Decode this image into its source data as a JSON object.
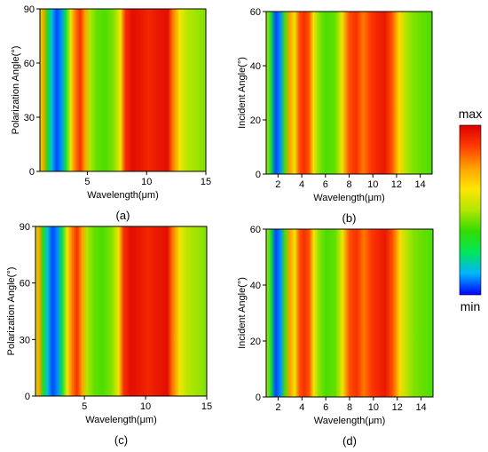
{
  "colorbar": {
    "max_label": "max",
    "min_label": "min",
    "colors": [
      "#0000ff",
      "#00b4ff",
      "#00e65a",
      "#32dc00",
      "#b4e600",
      "#ffe600",
      "#ffa000",
      "#ff3c00",
      "#dc0000"
    ]
  },
  "chart_data": [
    {
      "type": "heatmap",
      "panel_label": "(a)",
      "xlabel": "Wavelength(μm)",
      "ylabel": "Polarization Angle(°)",
      "xlim": [
        1,
        15
      ],
      "ylim": [
        0,
        90
      ],
      "x_ticks": [
        5,
        10,
        15
      ],
      "y_ticks": [
        0,
        30,
        60,
        90
      ],
      "x_tick_labels": [
        "5",
        "10",
        "15"
      ],
      "y_tick_labels": [
        "0",
        "30",
        "60",
        "90"
      ],
      "z_range": [
        "min",
        "max"
      ],
      "wavelength_profile": {
        "x": [
          1.0,
          1.3,
          1.6,
          2.0,
          2.4,
          2.8,
          3.2,
          3.6,
          4.0,
          4.4,
          4.8,
          5.2,
          5.8,
          6.5,
          7.2,
          7.8,
          8.2,
          8.8,
          9.5,
          10.2,
          11.0,
          11.8,
          12.2,
          12.8,
          13.5,
          14.2,
          15.0
        ],
        "values": [
          0.55,
          0.75,
          0.35,
          0.15,
          0.05,
          0.1,
          0.3,
          0.6,
          0.8,
          0.9,
          0.75,
          0.5,
          0.42,
          0.4,
          0.45,
          0.6,
          0.9,
          0.97,
          0.95,
          0.92,
          0.95,
          0.97,
          0.8,
          0.6,
          0.5,
          0.48,
          0.45
        ]
      }
    },
    {
      "type": "heatmap",
      "panel_label": "(b)",
      "xlabel": "Wavelength(μm)",
      "ylabel": "Incident Angle(°)",
      "xlim": [
        1,
        15
      ],
      "ylim": [
        0,
        60
      ],
      "x_ticks": [
        2,
        4,
        6,
        8,
        10,
        12,
        14
      ],
      "y_ticks": [
        0,
        20,
        40,
        60
      ],
      "x_tick_labels": [
        "2",
        "4",
        "6",
        "8",
        "10",
        "12",
        "14"
      ],
      "y_tick_labels": [
        "0",
        "20",
        "40",
        "60"
      ],
      "z_range": [
        "min",
        "max"
      ],
      "wavelength_profile": {
        "x": [
          1.0,
          1.4,
          1.8,
          2.2,
          2.6,
          3.0,
          3.4,
          3.8,
          4.2,
          4.6,
          5.0,
          5.5,
          6.0,
          6.8,
          7.4,
          8.0,
          8.6,
          9.2,
          9.8,
          10.4,
          11.0,
          11.6,
          12.2,
          12.8,
          13.4,
          14.2,
          15.0
        ],
        "values": [
          0.5,
          0.3,
          0.05,
          0.1,
          0.4,
          0.75,
          0.6,
          0.85,
          0.9,
          0.85,
          0.6,
          0.45,
          0.4,
          0.42,
          0.6,
          0.85,
          0.9,
          0.8,
          0.88,
          0.92,
          0.95,
          0.85,
          0.65,
          0.5,
          0.45,
          0.42,
          0.4
        ]
      }
    },
    {
      "type": "heatmap",
      "panel_label": "(c)",
      "xlabel": "Wavelength(μm)",
      "ylabel": "Polarization Angle(°)",
      "xlim": [
        1,
        15
      ],
      "ylim": [
        0,
        90
      ],
      "x_ticks": [
        5,
        10,
        15
      ],
      "y_ticks": [
        0,
        30,
        60,
        90
      ],
      "x_tick_labels": [
        "5",
        "10",
        "15"
      ],
      "y_tick_labels": [
        "0",
        "30",
        "60",
        "90"
      ],
      "z_range": [
        "min",
        "max"
      ],
      "wavelength_profile": {
        "x": [
          1.0,
          1.3,
          1.6,
          2.0,
          2.4,
          2.8,
          3.2,
          3.6,
          4.0,
          4.4,
          4.8,
          5.2,
          5.8,
          6.5,
          7.2,
          7.8,
          8.2,
          8.8,
          9.5,
          10.2,
          11.0,
          11.8,
          12.2,
          12.8,
          13.5,
          14.2,
          15.0
        ],
        "values": [
          0.55,
          0.75,
          0.35,
          0.15,
          0.05,
          0.1,
          0.3,
          0.6,
          0.8,
          0.9,
          0.75,
          0.5,
          0.42,
          0.4,
          0.45,
          0.6,
          0.9,
          0.97,
          0.95,
          0.92,
          0.95,
          0.97,
          0.8,
          0.6,
          0.5,
          0.48,
          0.45
        ]
      }
    },
    {
      "type": "heatmap",
      "panel_label": "(d)",
      "xlabel": "Wavelength(μm)",
      "ylabel": "Incident Angle(°)",
      "xlim": [
        1,
        15
      ],
      "ylim": [
        0,
        60
      ],
      "x_ticks": [
        2,
        4,
        6,
        8,
        10,
        12,
        14
      ],
      "y_ticks": [
        0,
        20,
        40,
        60
      ],
      "x_tick_labels": [
        "2",
        "4",
        "6",
        "8",
        "10",
        "12",
        "14"
      ],
      "y_tick_labels": [
        "0",
        "20",
        "40",
        "60"
      ],
      "z_range": [
        "min",
        "max"
      ],
      "wavelength_profile": {
        "x": [
          1.0,
          1.4,
          1.8,
          2.2,
          2.6,
          3.0,
          3.4,
          3.8,
          4.2,
          4.6,
          5.0,
          5.5,
          6.0,
          6.8,
          7.4,
          8.0,
          8.6,
          9.2,
          9.8,
          10.4,
          11.0,
          11.6,
          12.2,
          12.8,
          13.4,
          14.2,
          15.0
        ],
        "values": [
          0.5,
          0.3,
          0.05,
          0.1,
          0.4,
          0.75,
          0.6,
          0.85,
          0.9,
          0.85,
          0.6,
          0.45,
          0.4,
          0.42,
          0.6,
          0.85,
          0.9,
          0.8,
          0.88,
          0.92,
          0.95,
          0.85,
          0.65,
          0.5,
          0.45,
          0.42,
          0.4
        ]
      }
    }
  ]
}
